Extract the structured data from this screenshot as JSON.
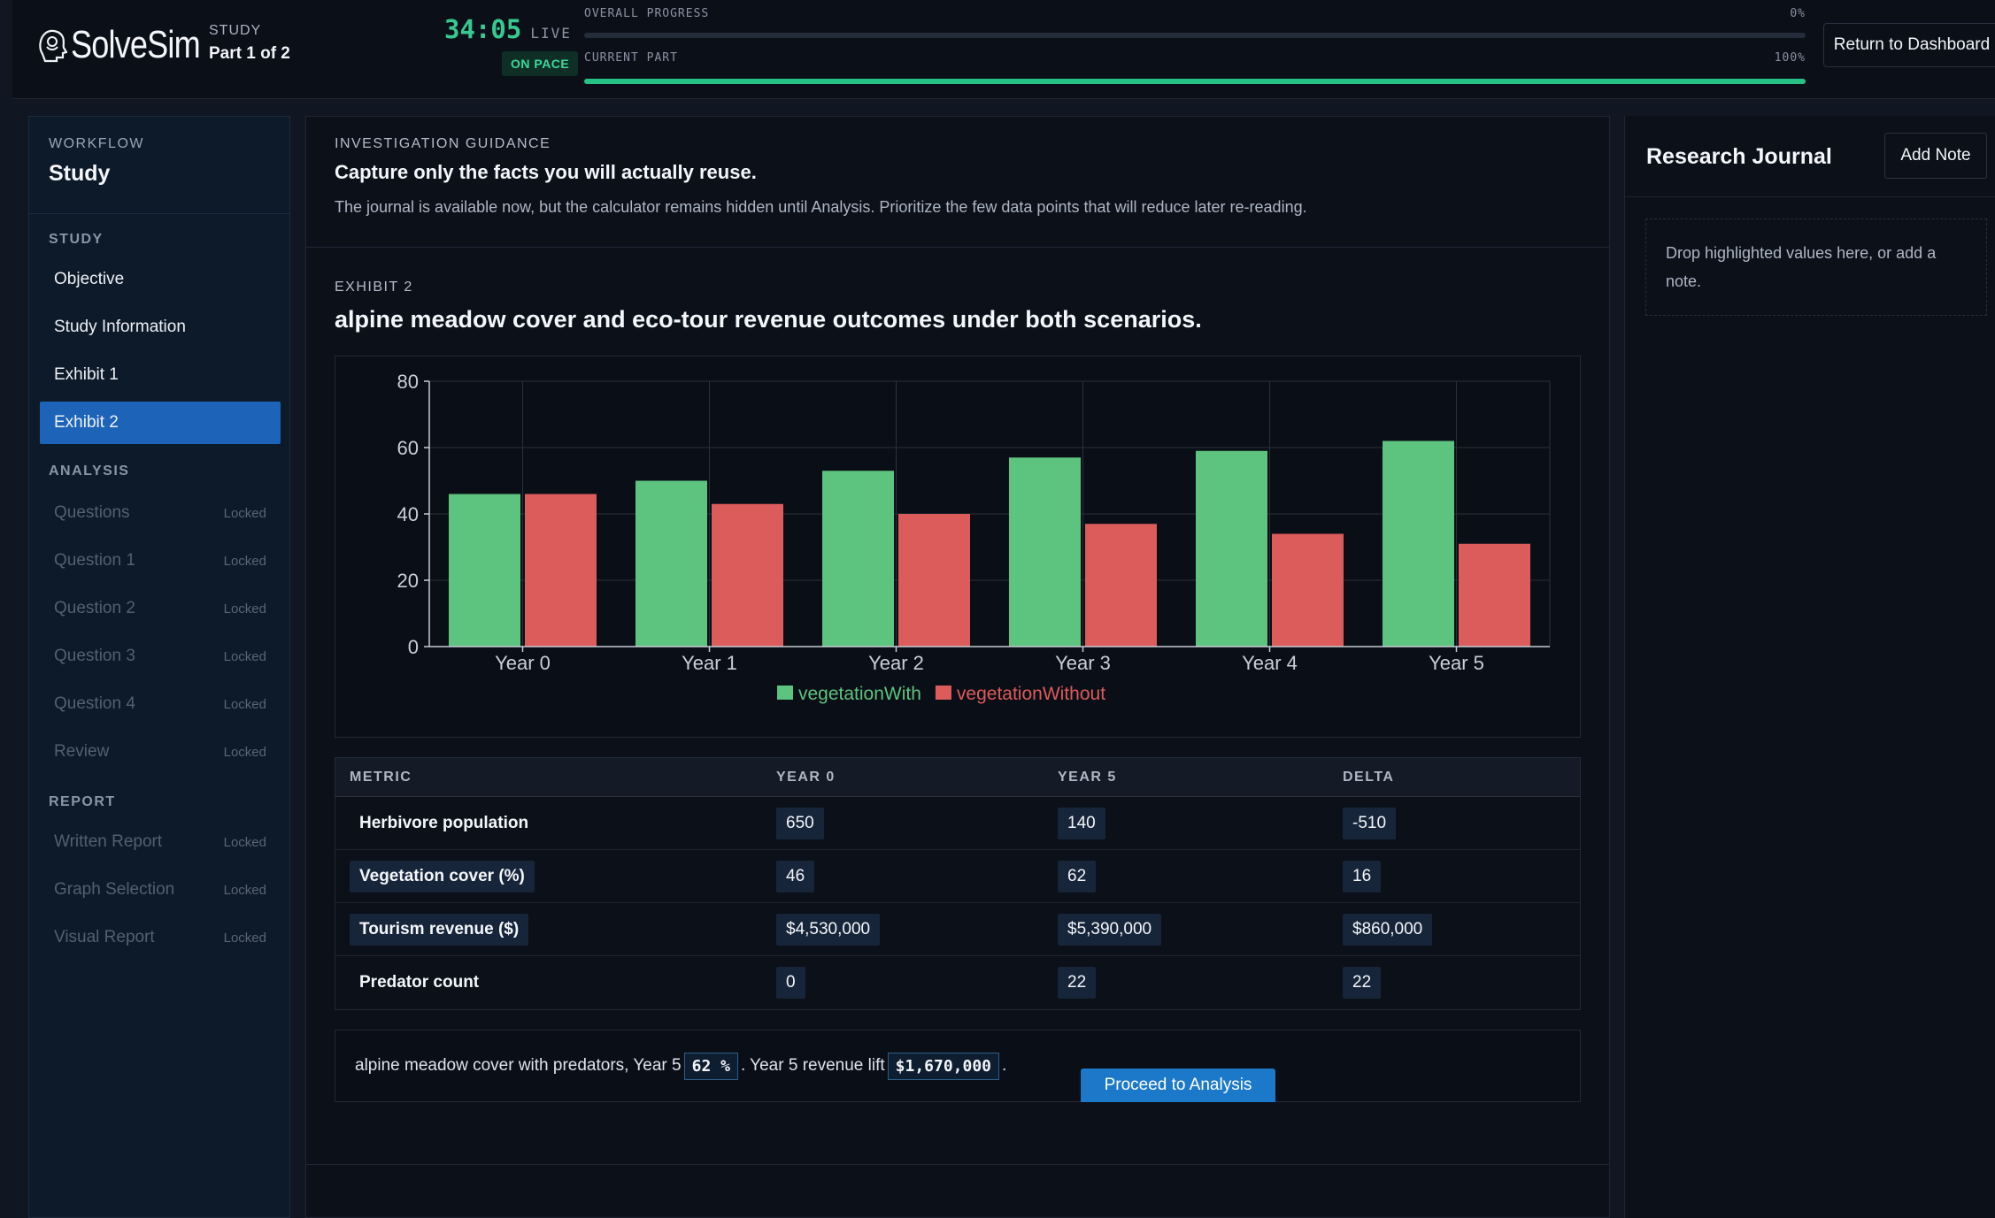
{
  "header": {
    "brand": "SolveSim",
    "study_kicker": "STUDY",
    "part": "Part 1 of 2",
    "timer": "34:05",
    "live_label": "LIVE",
    "pace": "ON PACE",
    "overall_label": "OVERALL PROGRESS",
    "overall_pct_label": "0%",
    "overall_value": 0,
    "current_label": "CURRENT PART",
    "current_pct_label": "100%",
    "current_value": 100,
    "dashboard_button": "Return to Dashboard",
    "colors": {
      "accent_green": "#26c184",
      "timer": "#37c98f"
    }
  },
  "sidebar": {
    "kicker": "WORKFLOW",
    "title": "Study",
    "sections": [
      {
        "label": "STUDY"
      },
      {
        "label": "ANALYSIS"
      },
      {
        "label": "REPORT"
      }
    ],
    "items": [
      {
        "label": "Objective",
        "state": ""
      },
      {
        "label": "Study Information",
        "state": ""
      },
      {
        "label": "Exhibit 1",
        "state": ""
      },
      {
        "label": "Exhibit 2",
        "state": "active"
      },
      {
        "label": "Questions",
        "state": "Locked"
      },
      {
        "label": "Question 1",
        "state": "Locked"
      },
      {
        "label": "Question 2",
        "state": "Locked"
      },
      {
        "label": "Question 3",
        "state": "Locked"
      },
      {
        "label": "Question 4",
        "state": "Locked"
      },
      {
        "label": "Review",
        "state": "Locked"
      },
      {
        "label": "Written Report",
        "state": "Locked"
      },
      {
        "label": "Graph Selection",
        "state": "Locked"
      },
      {
        "label": "Visual Report",
        "state": "Locked"
      }
    ],
    "active_color": "#1d64b8"
  },
  "guidance": {
    "kicker": "INVESTIGATION GUIDANCE",
    "headline": "Capture only the facts you will actually reuse.",
    "body": "The journal is available now, but the calculator remains hidden until Analysis. Prioritize the few data points that will reduce later re-reading."
  },
  "exhibit": {
    "kicker": "EXHIBIT 2",
    "title": "alpine meadow cover and eco-tour revenue outcomes under both scenarios."
  },
  "chart_data": {
    "type": "bar",
    "title": "",
    "xlabel": "",
    "ylabel": "",
    "categories": [
      "Year 0",
      "Year 1",
      "Year 2",
      "Year 3",
      "Year 4",
      "Year 5"
    ],
    "series": [
      {
        "name": "vegetationWith",
        "color": "#5cc47e",
        "values": [
          46,
          50,
          53,
          57,
          59,
          62
        ]
      },
      {
        "name": "vegetationWithout",
        "color": "#dc5b5b",
        "values": [
          46,
          43,
          40,
          37,
          34,
          31
        ]
      }
    ],
    "ylim": [
      0,
      80
    ],
    "yticks": [
      0,
      20,
      40,
      60,
      80
    ],
    "grid": true,
    "legend": "bottom-center"
  },
  "table": {
    "headers": [
      "METRIC",
      "YEAR 0",
      "YEAR 5",
      "DELTA"
    ],
    "rows": [
      {
        "metric": "Herbivore population",
        "metric_boxed": false,
        "y0": "650",
        "y5": "140",
        "delta": "-510"
      },
      {
        "metric": "Vegetation cover (%)",
        "metric_boxed": true,
        "y0": "46",
        "y5": "62",
        "delta": "16"
      },
      {
        "metric": "Tourism revenue ($)",
        "metric_boxed": true,
        "y0": "$4,530,000",
        "y5": "$5,390,000",
        "delta": "$860,000"
      },
      {
        "metric": "Predator count",
        "metric_boxed": false,
        "y0": "0",
        "y5": "22",
        "delta": "22"
      }
    ]
  },
  "summary": {
    "text1": "alpine meadow cover with predators, Year 5",
    "value1": "62 %",
    "text2": ". Year 5 revenue lift",
    "value2": "$1,670,000",
    "text3": "."
  },
  "actions": {
    "proceed": "Proceed to Analysis"
  },
  "journal": {
    "title": "Research Journal",
    "add_note": "Add Note",
    "drop_hint": "Drop highlighted values here, or add a note."
  }
}
